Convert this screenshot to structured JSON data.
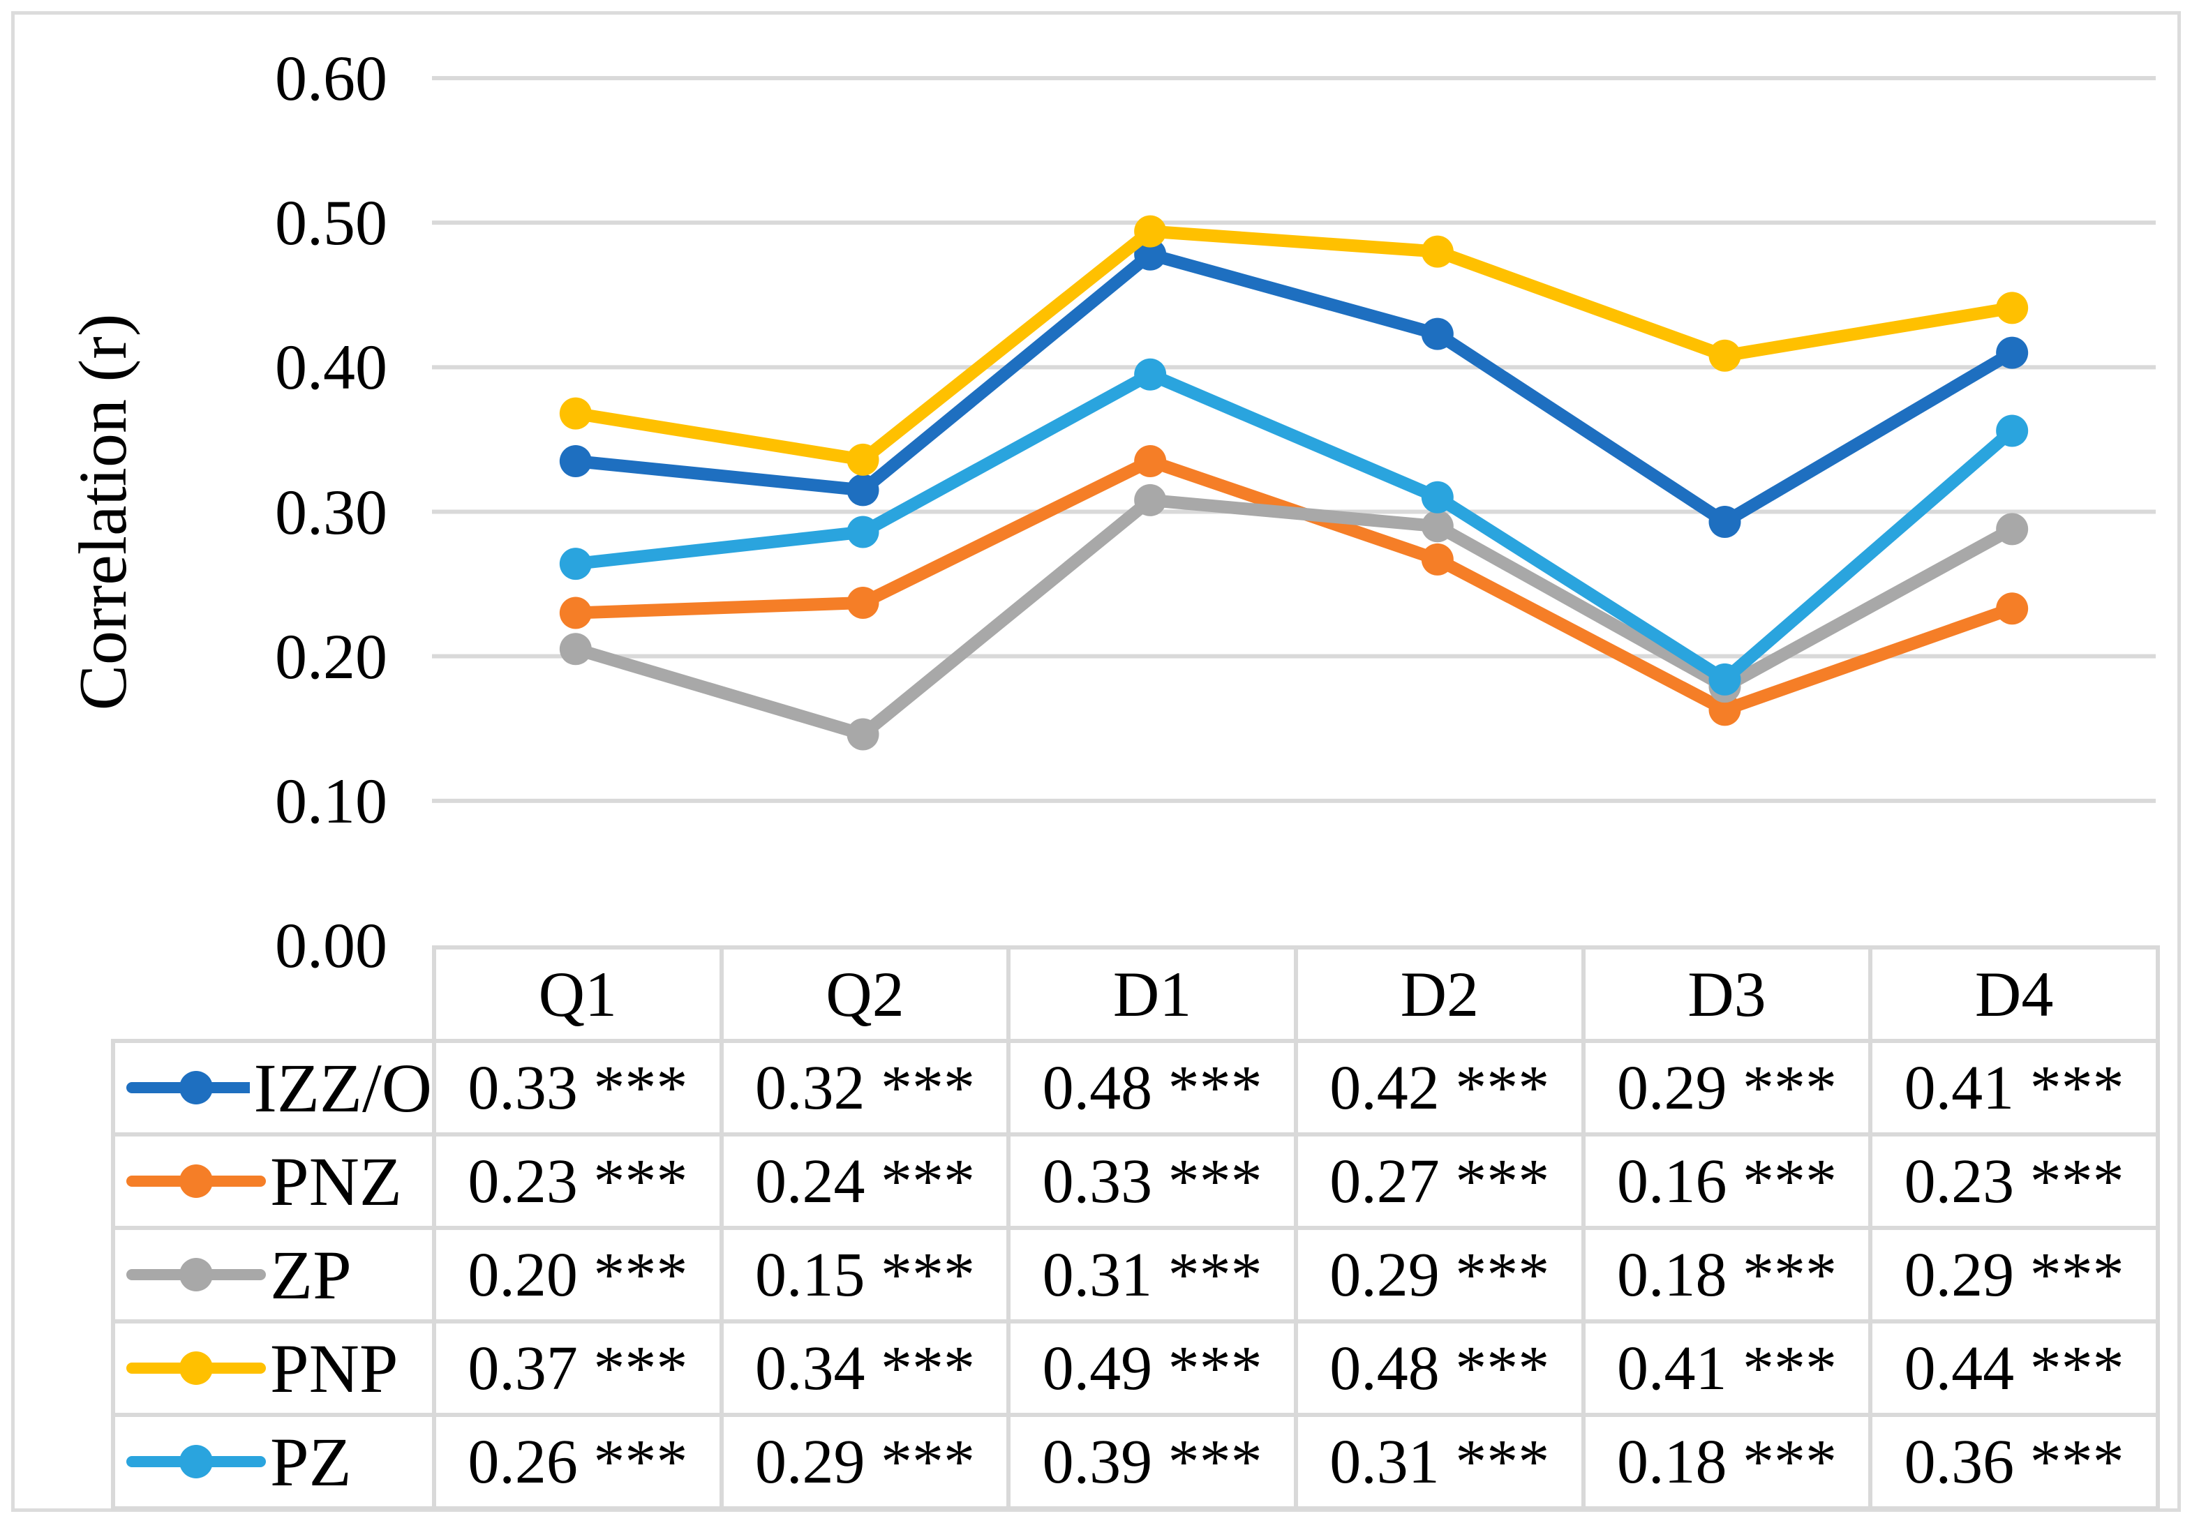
{
  "figure": {
    "background": "#ffffff",
    "frame_border_color": "#dcdcdc",
    "gridline_color": "#d9d9d9",
    "table_border_color": "#d9d9d9",
    "text_color": "#000000"
  },
  "chart_data": {
    "type": "line",
    "title": "",
    "y_axis_title": "Correlation (r)",
    "xlabel": "",
    "ylabel": "Correlation (r)",
    "categories": [
      "Q1",
      "Q2",
      "D1",
      "D2",
      "D3",
      "D4"
    ],
    "y_ticks": [
      "0.00",
      "0.10",
      "0.20",
      "0.30",
      "0.40",
      "0.50",
      "0.60"
    ],
    "ylim": [
      0.0,
      0.6
    ],
    "grid": "horizontal",
    "legend_position": "data-table-left",
    "significance_marker": "***",
    "series": [
      {
        "name": "IZZ/O",
        "color": "#1E6FC0",
        "values": [
          0.33,
          0.32,
          0.48,
          0.42,
          0.29,
          0.41
        ],
        "plot_values": [
          0.335,
          0.315,
          0.478,
          0.423,
          0.293,
          0.41
        ],
        "table_cells": [
          "0.33 ***",
          "0.32 ***",
          "0.48 ***",
          "0.42 ***",
          "0.29 ***",
          "0.41 ***"
        ]
      },
      {
        "name": "PNZ",
        "color": "#F57E27",
        "values": [
          0.23,
          0.24,
          0.33,
          0.27,
          0.16,
          0.23
        ],
        "plot_values": [
          0.23,
          0.237,
          0.335,
          0.267,
          0.163,
          0.233
        ],
        "table_cells": [
          "0.23 ***",
          "0.24 ***",
          "0.33 ***",
          "0.27 ***",
          "0.16 ***",
          "0.23 ***"
        ]
      },
      {
        "name": "ZP",
        "color": "#A8A8A8",
        "values": [
          0.2,
          0.15,
          0.31,
          0.29,
          0.18,
          0.29
        ],
        "plot_values": [
          0.205,
          0.146,
          0.308,
          0.29,
          0.179,
          0.288
        ],
        "table_cells": [
          "0.20 ***",
          "0.15 ***",
          "0.31 ***",
          "0.29 ***",
          "0.18 ***",
          "0.29 ***"
        ]
      },
      {
        "name": "PNP",
        "color": "#FFC000",
        "values": [
          0.37,
          0.34,
          0.49,
          0.48,
          0.41,
          0.44
        ],
        "plot_values": [
          0.368,
          0.336,
          0.494,
          0.48,
          0.408,
          0.441
        ],
        "table_cells": [
          "0.37 ***",
          "0.34 ***",
          "0.49 ***",
          "0.48 ***",
          "0.41 ***",
          "0.44 ***"
        ]
      },
      {
        "name": "PZ",
        "color": "#2AA4DE",
        "values": [
          0.26,
          0.29,
          0.39,
          0.31,
          0.18,
          0.36
        ],
        "plot_values": [
          0.264,
          0.286,
          0.395,
          0.31,
          0.184,
          0.356
        ],
        "table_cells": [
          "0.26 ***",
          "0.29 ***",
          "0.39 ***",
          "0.31 ***",
          "0.18 ***",
          "0.36 ***"
        ]
      }
    ]
  }
}
